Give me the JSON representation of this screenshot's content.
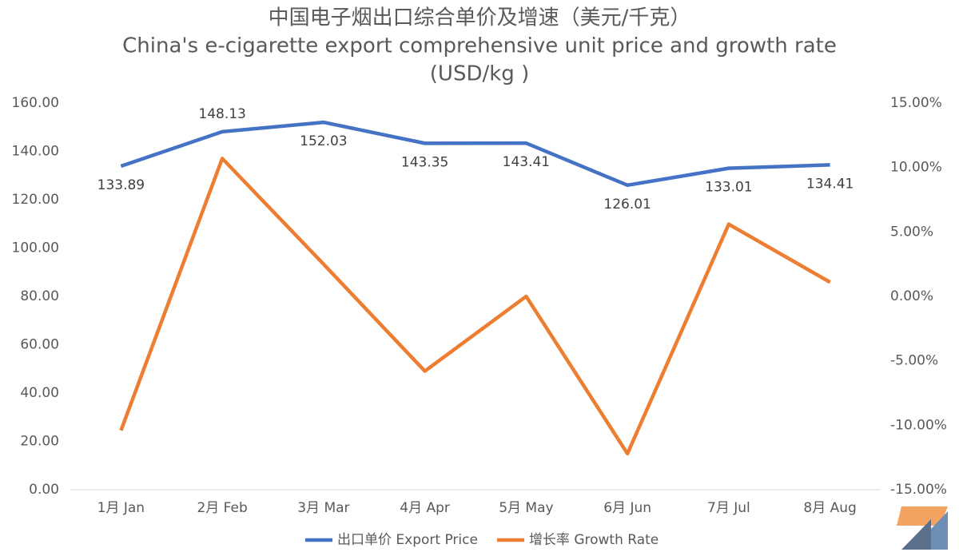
{
  "chart_data": {
    "type": "line",
    "title": [
      "中国电子烟出口综合单价及增速（美元/千克）",
      "China's e-cigarette export comprehensive unit price and growth rate",
      "(USD/kg )"
    ],
    "categories": [
      "1月 Jan",
      "2月 Feb",
      "3月 Mar",
      "4月 Apr",
      "5月 May",
      "6月 Jun",
      "7月 Jul",
      "8月 Aug"
    ],
    "series": [
      {
        "name": "出口单价 Export Price",
        "color": "#4472c4",
        "values": [
          133.89,
          148.13,
          152.03,
          143.35,
          143.41,
          126.01,
          133.01,
          134.41
        ]
      },
      {
        "name": "增长率 Growth Rate",
        "color": "#ed7d31",
        "axis": "y2",
        "values": [
          -10.4,
          10.7,
          2.5,
          -5.8,
          0.0,
          -12.2,
          5.6,
          1.1
        ]
      }
    ],
    "ylim": [
      0,
      160
    ],
    "yticks": [
      {
        "value": 0,
        "label": "0.00"
      },
      {
        "value": 20,
        "label": "20.00"
      },
      {
        "value": 40,
        "label": "40.00"
      },
      {
        "value": 60,
        "label": "60.00"
      },
      {
        "value": 80,
        "label": "80.00"
      },
      {
        "value": 100,
        "label": "100.00"
      },
      {
        "value": 120,
        "label": "120.00"
      },
      {
        "value": 140,
        "label": "140.00"
      },
      {
        "value": 160,
        "label": "160.00"
      }
    ],
    "y2lim": [
      -15,
      15
    ],
    "y2ticks": [
      {
        "value": -15,
        "label": "-15.00%"
      },
      {
        "value": -10,
        "label": "-10.00%"
      },
      {
        "value": -5,
        "label": "-5.00%"
      },
      {
        "value": 0,
        "label": "0.00%"
      },
      {
        "value": 5,
        "label": "5.00%"
      },
      {
        "value": 10,
        "label": "10.00%"
      },
      {
        "value": 15,
        "label": "15.00%"
      }
    ],
    "grid": false,
    "legend": "bottom"
  }
}
